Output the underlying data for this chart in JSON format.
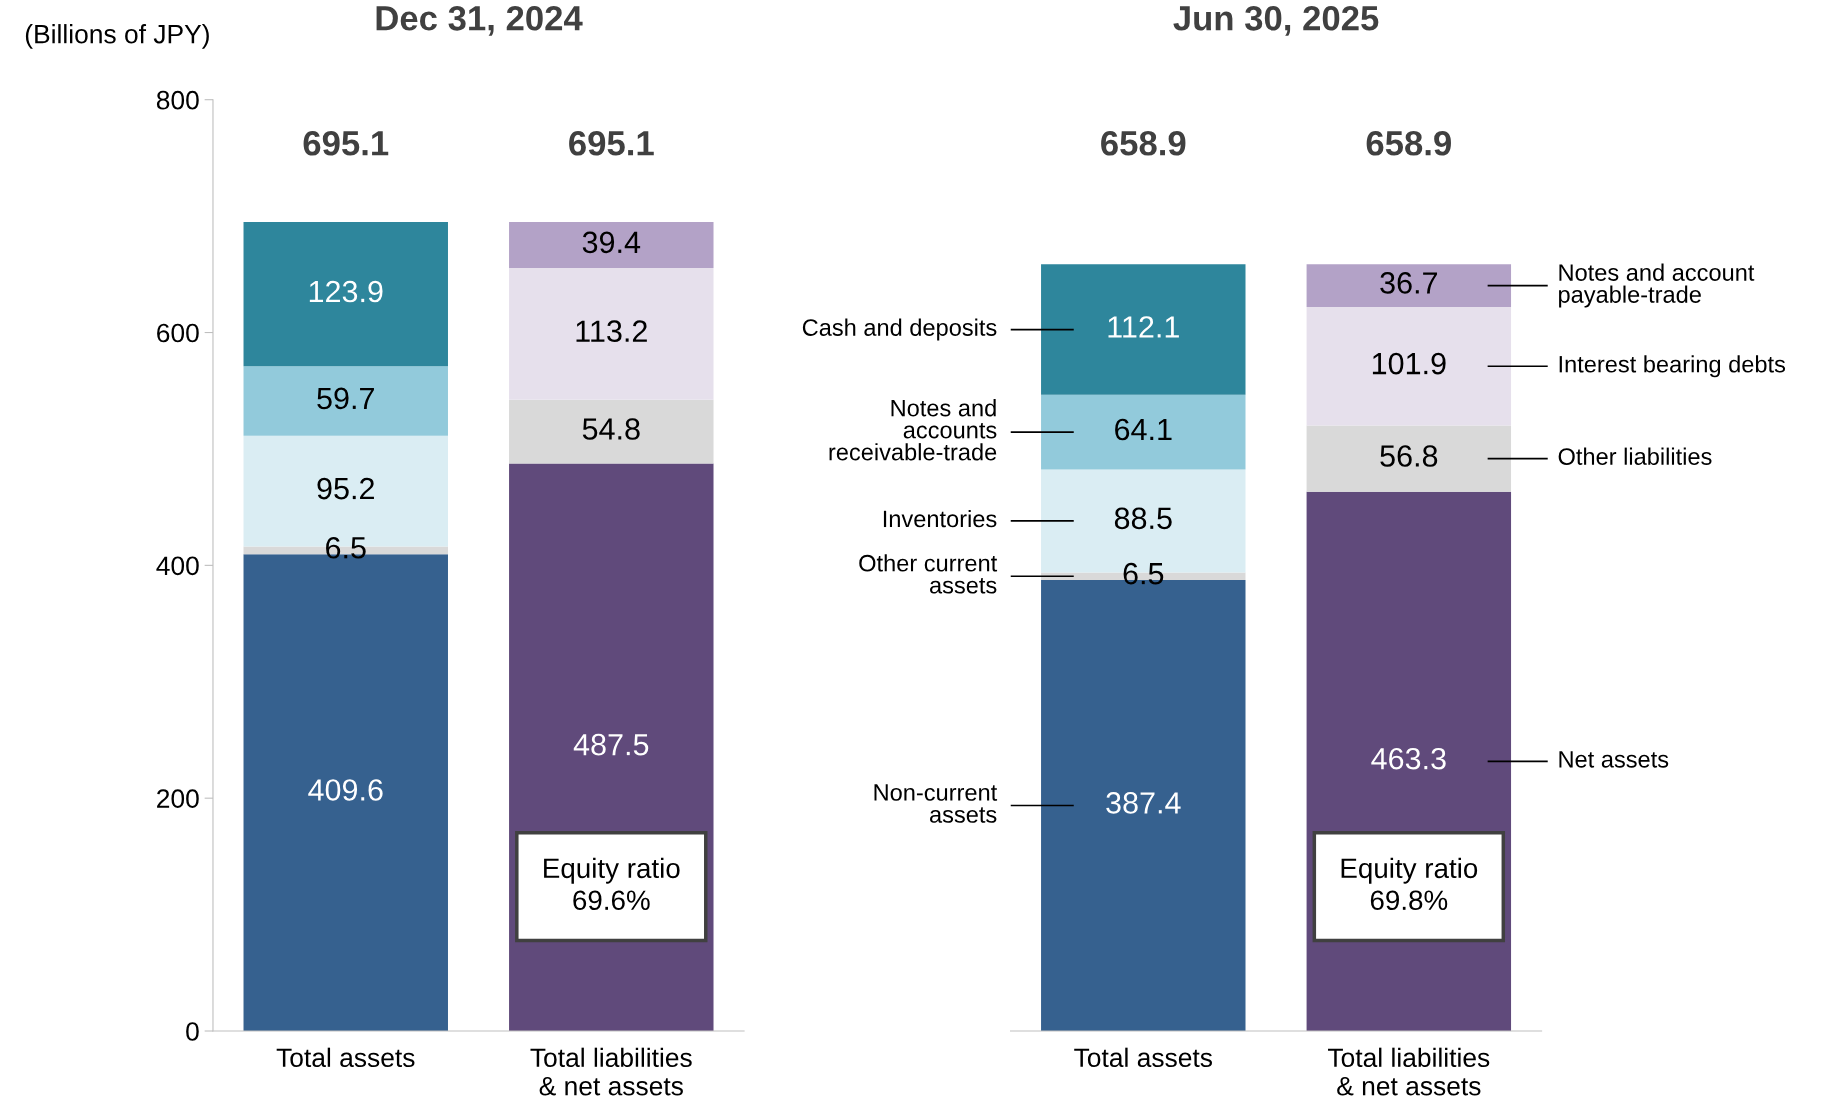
{
  "chart_data": [
    {
      "type": "bar",
      "stacked": true,
      "title": "Dec 31, 2024",
      "ylabel": "(Billions of JPY)",
      "categories": [
        "Total assets",
        "Total liabilities\n& net assets"
      ],
      "ylim": [
        0,
        800
      ],
      "yticks": [
        0,
        200,
        400,
        600,
        800
      ],
      "grid": false,
      "legend": false,
      "data_labels": true,
      "totals": [
        "695.1",
        "695.1"
      ],
      "series": [
        {
          "color": "#36618f",
          "values": [
            409.6,
            null
          ]
        },
        {
          "color": "#d9d9d9",
          "values": [
            6.5,
            null
          ]
        },
        {
          "color": "#daedf3",
          "values": [
            95.2,
            null
          ]
        },
        {
          "color": "#92cadb",
          "values": [
            59.7,
            null
          ]
        },
        {
          "color": "#2e869c",
          "values": [
            123.9,
            null
          ]
        },
        {
          "color": "#604a7b",
          "values": [
            null,
            487.5
          ]
        },
        {
          "color": "#d9d9d9",
          "values": [
            null,
            54.8
          ]
        },
        {
          "color": "#e6e0ec",
          "values": [
            null,
            113.2
          ]
        },
        {
          "color": "#b3a2c7",
          "values": [
            null,
            39.4
          ]
        }
      ],
      "annotations": [
        "Equity ratio\n69.6%"
      ]
    },
    {
      "type": "bar",
      "stacked": true,
      "title": "Jun 30, 2025",
      "categories": [
        "Total assets",
        "Total liabilities\n& net assets"
      ],
      "ylim": [
        0,
        800
      ],
      "tick_labels": "x",
      "grid": false,
      "legend": false,
      "data_labels": true,
      "totals": [
        "658.9",
        "658.9"
      ],
      "series": [
        {
          "name": "Non-current\nassets",
          "color": "#36618f",
          "values": [
            387.4,
            null
          ]
        },
        {
          "name": "Other current\nassets",
          "color": "#d9d9d9",
          "values": [
            6.5,
            null
          ]
        },
        {
          "name": "Inventories",
          "color": "#daedf3",
          "values": [
            88.5,
            null
          ]
        },
        {
          "name": "Notes and\naccounts\nreceivable-trade",
          "color": "#92cadb",
          "values": [
            64.1,
            null
          ]
        },
        {
          "name": "Cash and deposits",
          "color": "#2e869c",
          "values": [
            112.1,
            null
          ]
        },
        {
          "name": "Net assets",
          "color": "#604a7b",
          "values": [
            null,
            463.3
          ]
        },
        {
          "name": "Other liabilities",
          "color": "#d9d9d9",
          "values": [
            null,
            56.8
          ]
        },
        {
          "name": "Interest bearing debts",
          "color": "#e6e0ec",
          "values": [
            null,
            101.9
          ]
        },
        {
          "name": "Notes and account\npayable-trade",
          "color": "#b3a2c7",
          "values": [
            null,
            36.7
          ]
        }
      ],
      "annotations": [
        "Equity ratio\n69.8%"
      ]
    }
  ]
}
